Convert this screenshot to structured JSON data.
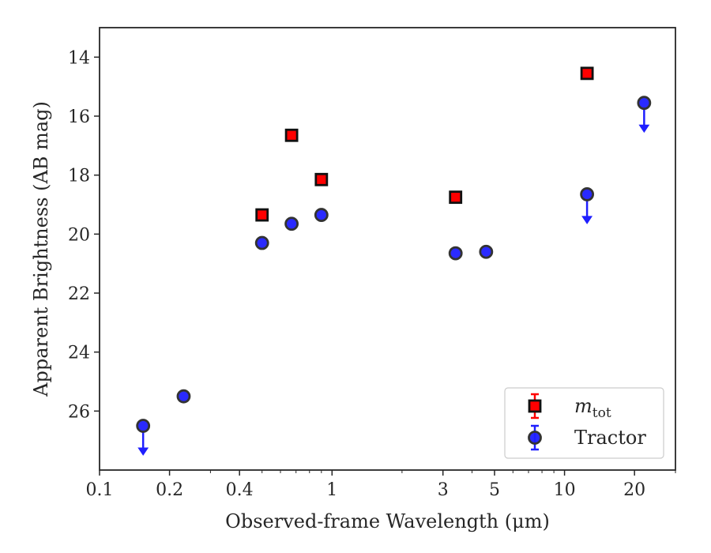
{
  "chart_data": {
    "type": "scatter",
    "xlabel": "Observed-frame Wavelength (μm)",
    "ylabel": "Apparent Brightness (AB mag)",
    "xscale": "log",
    "xlim": [
      0.1,
      30
    ],
    "ylim": [
      28.0,
      13.0
    ],
    "y_inverted": true,
    "x_ticks": [
      0.1,
      0.2,
      0.4,
      1,
      3,
      5,
      10,
      20
    ],
    "x_tick_labels": [
      "0.1",
      "0.2",
      "0.4",
      "1",
      "3",
      "5",
      "10",
      "20"
    ],
    "y_ticks": [
      14,
      16,
      18,
      20,
      22,
      24,
      26
    ],
    "y_tick_labels": [
      "14",
      "16",
      "18",
      "20",
      "22",
      "24",
      "26"
    ],
    "grid": false,
    "legend_position": "lower-right",
    "series": [
      {
        "name": "m_tot",
        "label_main": "m",
        "label_sub": "tot",
        "marker": "square",
        "color": "#ff0000",
        "edge_color": "#111111",
        "points": [
          {
            "x": 0.5,
            "y": 19.35
          },
          {
            "x": 0.67,
            "y": 16.65
          },
          {
            "x": 0.9,
            "y": 18.15
          },
          {
            "x": 3.4,
            "y": 18.75
          },
          {
            "x": 12.5,
            "y": 14.55
          }
        ]
      },
      {
        "name": "Tractor",
        "label_main": "Tractor",
        "marker": "circle",
        "color": "#1f1fff",
        "edge_color": "#333333",
        "points": [
          {
            "x": 0.154,
            "y": 26.5,
            "upper_limit": true
          },
          {
            "x": 0.23,
            "y": 25.5
          },
          {
            "x": 0.5,
            "y": 20.3
          },
          {
            "x": 0.67,
            "y": 19.65
          },
          {
            "x": 0.9,
            "y": 19.35
          },
          {
            "x": 3.4,
            "y": 20.65
          },
          {
            "x": 4.6,
            "y": 20.6
          },
          {
            "x": 12.5,
            "y": 18.65,
            "upper_limit": true
          },
          {
            "x": 22,
            "y": 15.55,
            "upper_limit": true
          }
        ]
      }
    ]
  }
}
